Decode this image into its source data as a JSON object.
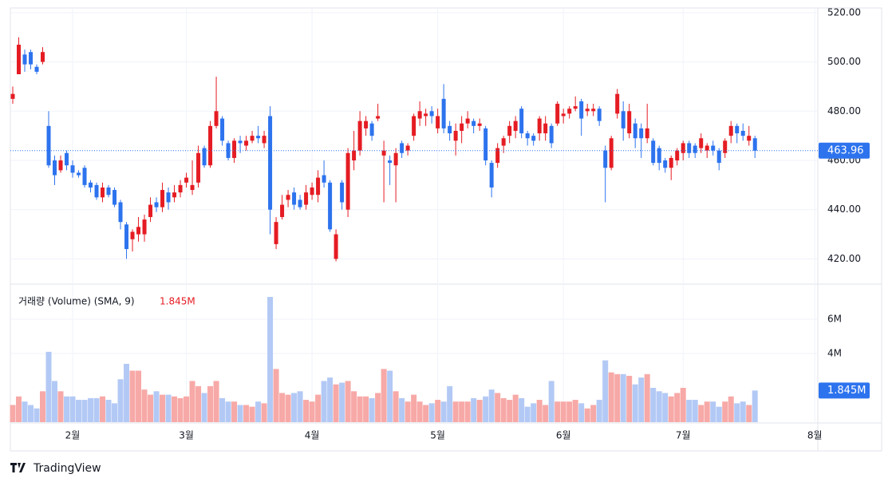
{
  "chart_data": [
    {
      "type": "candlestick",
      "open": [
        485,
        495,
        503,
        504,
        498,
        500,
        474,
        460,
        456,
        463,
        458,
        455,
        457,
        451,
        450,
        445,
        449,
        448,
        443,
        434,
        428,
        430,
        430,
        437,
        443,
        441,
        447,
        445,
        447,
        451,
        448,
        451,
        465,
        458,
        474,
        477,
        467,
        461,
        468,
        466,
        468,
        470,
        467,
        478,
        426,
        437,
        444,
        447,
        444,
        442,
        446,
        446,
        454,
        451,
        420,
        451,
        440,
        460,
        464,
        473,
        475,
        477,
        462,
        460,
        458,
        467,
        464,
        470,
        477,
        478,
        480,
        473,
        485,
        474,
        468,
        472,
        475,
        476,
        474,
        473,
        459,
        459,
        466,
        470,
        472,
        481,
        471,
        470,
        471,
        471,
        474,
        475,
        478,
        479,
        481,
        484,
        480,
        480,
        481,
        464,
        457,
        479,
        480,
        471,
        475,
        473,
        469,
        468,
        465,
        460,
        457,
        460,
        463,
        467,
        466,
        465,
        464,
        466,
        464,
        463,
        470,
        474,
        472,
        468,
        469
      ],
      "high": [
        490,
        510,
        505,
        505,
        499,
        506,
        480,
        462,
        462,
        464,
        460,
        456,
        458,
        452,
        451,
        451,
        450,
        449,
        444,
        435,
        432,
        437,
        438,
        445,
        445,
        451,
        449,
        450,
        452,
        455,
        460,
        466,
        466,
        476,
        494,
        478,
        468,
        469,
        470,
        470,
        472,
        474,
        472,
        482,
        437,
        446,
        448,
        449,
        446,
        450,
        451,
        456,
        460,
        452,
        432,
        452,
        465,
        472,
        480,
        478,
        476,
        483,
        468,
        462,
        465,
        468,
        467,
        479,
        484,
        481,
        482,
        481,
        491,
        476,
        475,
        478,
        480,
        477,
        477,
        474,
        460,
        467,
        470,
        476,
        478,
        482,
        472,
        471,
        478,
        478,
        475,
        484,
        481,
        482,
        486,
        485,
        483,
        483,
        482,
        466,
        470,
        489,
        484,
        483,
        477,
        475,
        483,
        469,
        466,
        461,
        462,
        465,
        468,
        468,
        467,
        471,
        467,
        468,
        465,
        469,
        476,
        475,
        475,
        474,
        470
      ],
      "low": [
        483,
        495,
        496,
        497,
        495,
        499,
        457,
        450,
        455,
        456,
        453,
        453,
        449,
        447,
        444,
        443,
        445,
        441,
        432,
        420,
        423,
        427,
        427,
        435,
        439,
        439,
        440,
        443,
        445,
        449,
        446,
        449,
        457,
        457,
        473,
        466,
        460,
        459,
        463,
        464,
        467,
        467,
        465,
        430,
        424,
        436,
        441,
        440,
        440,
        440,
        444,
        443,
        449,
        431,
        419,
        440,
        437,
        456,
        462,
        470,
        468,
        476,
        443,
        450,
        443,
        461,
        462,
        468,
        474,
        474,
        475,
        471,
        471,
        468,
        462,
        467,
        473,
        471,
        472,
        458,
        445,
        457,
        463,
        467,
        469,
        469,
        466,
        466,
        468,
        468,
        465,
        474,
        475,
        477,
        480,
        470,
        478,
        478,
        474,
        443,
        456,
        477,
        468,
        469,
        465,
        461,
        467,
        458,
        456,
        455,
        452,
        458,
        460,
        461,
        461,
        463,
        461,
        462,
        456,
        461,
        467,
        467,
        468,
        466,
        461
      ],
      "close": [
        487,
        507,
        499,
        499,
        496,
        504,
        458,
        454,
        460,
        458,
        455,
        454,
        450,
        449,
        445,
        449,
        446,
        442,
        435,
        424,
        431,
        433,
        436,
        442,
        441,
        448,
        443,
        447,
        450,
        453,
        450,
        463,
        458,
        474,
        480,
        468,
        461,
        468,
        467,
        468,
        470,
        469,
        470,
        440,
        435,
        442,
        446,
        442,
        441,
        447,
        449,
        453,
        451,
        432,
        430,
        443,
        463,
        464,
        476,
        476,
        470,
        478,
        464,
        459,
        463,
        463,
        466,
        478,
        480,
        479,
        478,
        478,
        473,
        471,
        472,
        475,
        477,
        474,
        475,
        460,
        449,
        465,
        469,
        474,
        476,
        471,
        469,
        468,
        477,
        475,
        467,
        483,
        479,
        481,
        482,
        477,
        481,
        481,
        476,
        457,
        469,
        487,
        473,
        480,
        469,
        469,
        473,
        459,
        459,
        457,
        461,
        464,
        467,
        463,
        463,
        469,
        466,
        464,
        459,
        468,
        474,
        471,
        470,
        470,
        463.96
      ],
      "up_color": "#e51c23",
      "down_color": "#2d73ee",
      "ylim": [
        410.1,
        521.9
      ],
      "yticks": [
        {
          "value": 420,
          "label": "420.00"
        },
        {
          "value": 440,
          "label": "440.00"
        },
        {
          "value": 460,
          "label": "460.00"
        },
        {
          "value": 480,
          "label": "480.00"
        },
        {
          "value": 500,
          "label": "500.00"
        },
        {
          "value": 520,
          "label": "520.00"
        }
      ],
      "xlim": [
        -0.4,
        134.5
      ],
      "xticks": [
        {
          "value": 10,
          "label": "2월"
        },
        {
          "value": 29,
          "label": "3월"
        },
        {
          "value": 50,
          "label": "4월"
        },
        {
          "value": 71,
          "label": "5월"
        },
        {
          "value": 92,
          "label": "6월"
        },
        {
          "value": 112,
          "label": "7월"
        },
        {
          "value": 134,
          "label": "8월"
        }
      ],
      "grid": true
    },
    {
      "type": "bar",
      "title": "거래량 (Volume) (SMA, 9)",
      "values": [
        1.0,
        1.5,
        1.2,
        1.0,
        0.8,
        1.8,
        4.1,
        2.4,
        1.8,
        1.5,
        1.5,
        1.3,
        1.3,
        1.4,
        1.4,
        1.5,
        1.3,
        1.1,
        2.5,
        3.4,
        3.0,
        3.0,
        1.9,
        1.6,
        1.8,
        1.6,
        1.6,
        1.5,
        1.4,
        1.5,
        2.4,
        2.1,
        1.7,
        2.1,
        2.4,
        1.4,
        1.2,
        1.2,
        1.0,
        1.0,
        0.9,
        1.2,
        1.1,
        7.3,
        3.1,
        1.7,
        1.6,
        1.7,
        1.8,
        1.3,
        1.2,
        1.6,
        2.4,
        2.6,
        2.2,
        2.3,
        2.4,
        1.8,
        1.5,
        1.5,
        1.4,
        1.7,
        3.1,
        3.0,
        1.8,
        1.4,
        1.2,
        1.6,
        1.2,
        1.0,
        1.1,
        1.3,
        1.2,
        2.1,
        1.2,
        1.2,
        1.2,
        1.4,
        1.3,
        1.5,
        1.9,
        1.7,
        1.4,
        1.3,
        1.6,
        1.4,
        0.9,
        1.1,
        1.3,
        1.0,
        2.4,
        1.2,
        1.2,
        1.2,
        1.3,
        1.1,
        0.8,
        1.0,
        1.3,
        3.6,
        2.9,
        2.8,
        2.8,
        2.7,
        2.2,
        2.6,
        2.8,
        2.0,
        1.8,
        1.7,
        1.5,
        1.7,
        2.0,
        1.3,
        1.3,
        1.0,
        1.2,
        1.2,
        0.9,
        1.2,
        1.5,
        1.1,
        1.2,
        1.0,
        1.845
      ],
      "last_label": "1.845M",
      "up_color": "#f7a9a7",
      "down_color": "#b3c9f5",
      "ylim": [
        0,
        8
      ],
      "yticks": [
        {
          "value": 4,
          "label": "4M"
        },
        {
          "value": 6,
          "label": "6M"
        }
      ],
      "grid": true
    }
  ],
  "branding": "TradingView"
}
